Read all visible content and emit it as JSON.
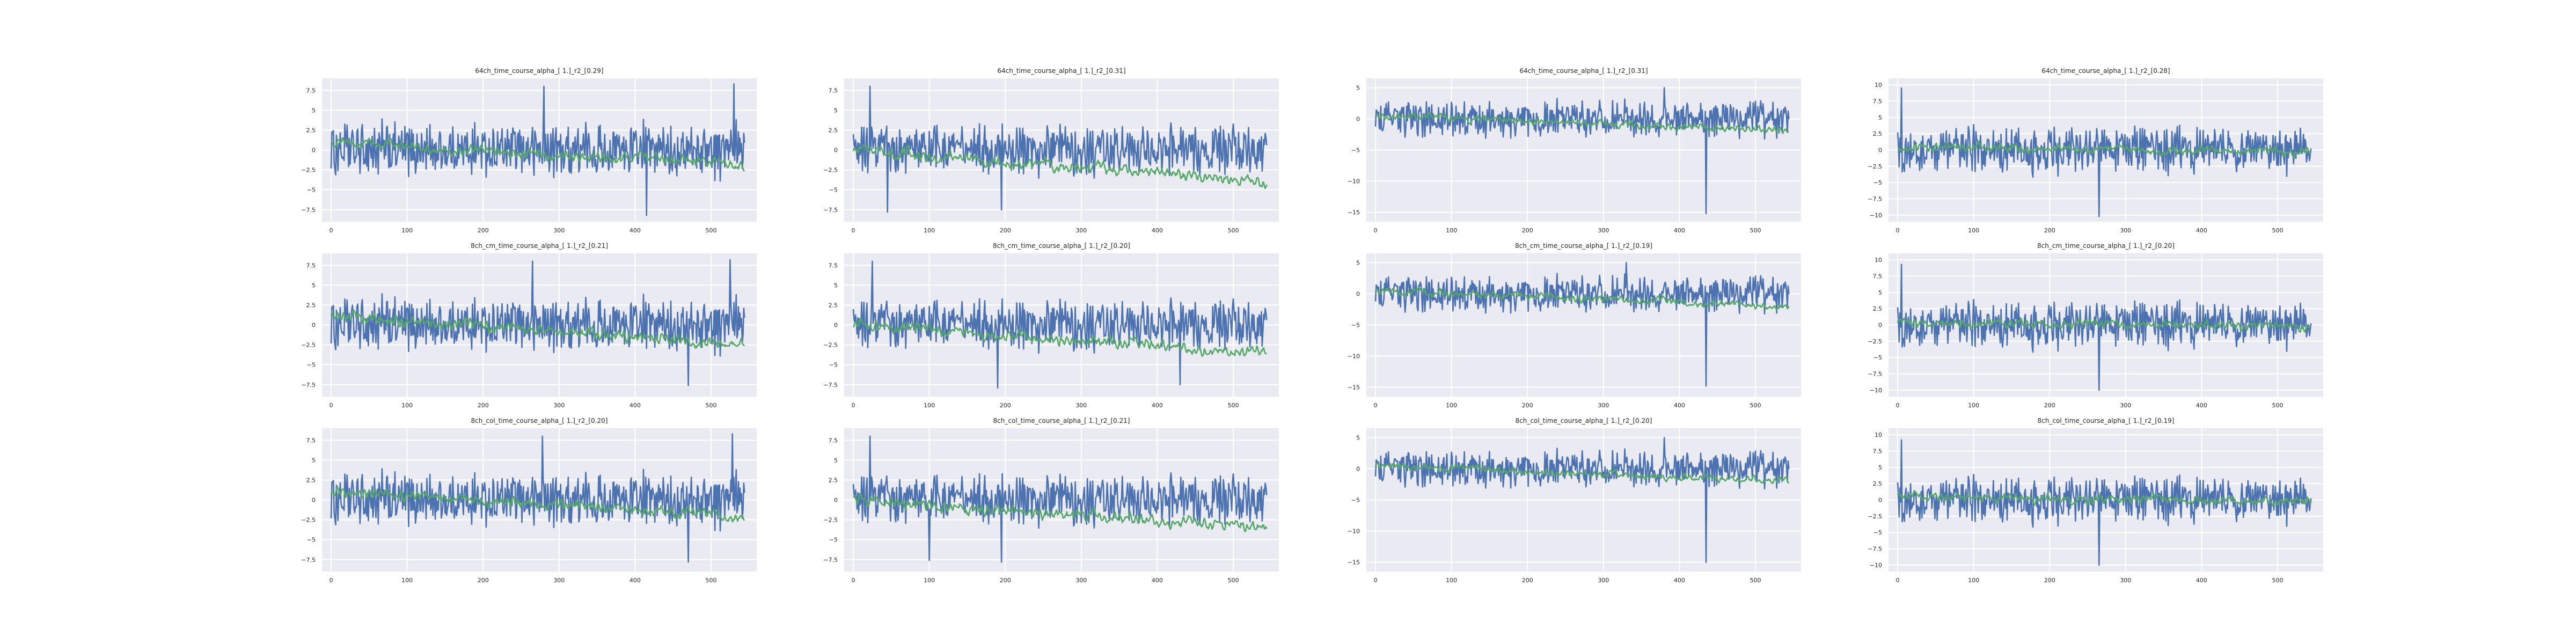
{
  "chart_data": [
    {
      "type": "line",
      "title": "64ch_time_course_alpha_[ 1.]_r2_[0.29]",
      "xlim": [
        -12,
        560
      ],
      "ylim": [
        -9.0,
        9.0
      ],
      "xticks": [
        0,
        100,
        200,
        300,
        400,
        500
      ],
      "yticks": [
        -7.5,
        -5.0,
        -2.5,
        0.0,
        2.5,
        5.0,
        7.5
      ],
      "n_points": 545,
      "grid": true,
      "series": [
        {
          "color": "#4c72b0",
          "mean": 0.0,
          "amplitude": 3.2,
          "events": [
            {
              "x": 280,
              "value": 8.0
            },
            {
              "x": 415,
              "value": -8.2
            },
            {
              "x": 530,
              "value": 8.3
            }
          ]
        },
        {
          "color": "#55a868",
          "start": 1.0,
          "end": -2.0,
          "amplitude": 0.7
        }
      ]
    },
    {
      "type": "line",
      "title": "64ch_time_course_alpha_[ 1.]_r2_[0.31]",
      "xlim": [
        -12,
        560
      ],
      "ylim": [
        -9.0,
        9.0
      ],
      "xticks": [
        0,
        100,
        200,
        300,
        400,
        500
      ],
      "yticks": [
        -7.5,
        -5.0,
        -2.5,
        0.0,
        2.5,
        5.0,
        7.5
      ],
      "n_points": 545,
      "grid": true,
      "series": [
        {
          "color": "#4c72b0",
          "mean": 0.0,
          "amplitude": 3.0,
          "events": [
            {
              "x": 22,
              "value": 8.0
            },
            {
              "x": 45,
              "value": -7.8
            },
            {
              "x": 195,
              "value": -7.5
            }
          ]
        },
        {
          "color": "#55a868",
          "start": 0.0,
          "end": -4.0,
          "amplitude": 0.8
        }
      ]
    },
    {
      "type": "line",
      "title": "64ch_time_course_alpha_[ 1.]_r2_[0.31]",
      "xlim": [
        -12,
        560
      ],
      "ylim": [
        -16.5,
        6.5
      ],
      "xticks": [
        0,
        100,
        200,
        300,
        400,
        500
      ],
      "yticks": [
        -15,
        -10,
        -5,
        0,
        5
      ],
      "n_points": 545,
      "grid": true,
      "series": [
        {
          "color": "#4c72b0",
          "mean": 0.0,
          "amplitude": 2.6,
          "events": [
            {
              "x": 435,
              "value": -15.2
            },
            {
              "x": 380,
              "value": 5.0
            }
          ]
        },
        {
          "color": "#55a868",
          "start": 0.5,
          "end": -2.0,
          "amplitude": 0.6
        }
      ]
    },
    {
      "type": "line",
      "title": "64ch_time_course_alpha_[ 1.]_r2_[0.28]",
      "xlim": [
        -12,
        560
      ],
      "ylim": [
        -11.0,
        11.0
      ],
      "xticks": [
        0,
        100,
        200,
        300,
        400,
        500
      ],
      "yticks": [
        -10.0,
        -7.5,
        -5.0,
        -2.5,
        0.0,
        2.5,
        5.0,
        7.5,
        10.0
      ],
      "n_points": 545,
      "grid": true,
      "series": [
        {
          "color": "#4c72b0",
          "mean": 0.0,
          "amplitude": 3.4,
          "events": [
            {
              "x": 5,
              "value": 9.5
            },
            {
              "x": 265,
              "value": -10.2
            }
          ]
        },
        {
          "color": "#55a868",
          "start": 0.5,
          "end": -0.3,
          "amplitude": 0.7
        }
      ]
    },
    {
      "type": "line",
      "title": "8ch_cm_time_course_alpha_[ 1.]_r2_[0.21]",
      "xlim": [
        -12,
        560
      ],
      "ylim": [
        -9.0,
        9.0
      ],
      "xticks": [
        0,
        100,
        200,
        300,
        400,
        500
      ],
      "yticks": [
        -7.5,
        -5.0,
        -2.5,
        0.0,
        2.5,
        5.0,
        7.5
      ],
      "n_points": 545,
      "grid": true,
      "series": [
        {
          "color": "#4c72b0",
          "mean": 0.0,
          "amplitude": 3.2,
          "events": [
            {
              "x": 265,
              "value": 8.0
            },
            {
              "x": 470,
              "value": -7.6
            },
            {
              "x": 525,
              "value": 8.2
            }
          ]
        },
        {
          "color": "#55a868",
          "start": 1.0,
          "end": -2.5,
          "amplitude": 0.8
        }
      ]
    },
    {
      "type": "line",
      "title": "8ch_cm_time_course_alpha_[ 1.]_r2_[0.20]",
      "xlim": [
        -12,
        560
      ],
      "ylim": [
        -9.0,
        9.0
      ],
      "xticks": [
        0,
        100,
        200,
        300,
        400,
        500
      ],
      "yticks": [
        -7.5,
        -5.0,
        -2.5,
        0.0,
        2.5,
        5.0,
        7.5
      ],
      "n_points": 545,
      "grid": true,
      "series": [
        {
          "color": "#4c72b0",
          "mean": 0.0,
          "amplitude": 3.0,
          "events": [
            {
              "x": 25,
              "value": 8.0
            },
            {
              "x": 190,
              "value": -7.9
            },
            {
              "x": 430,
              "value": -7.5
            }
          ]
        },
        {
          "color": "#55a868",
          "start": 0.0,
          "end": -3.5,
          "amplitude": 0.8
        }
      ]
    },
    {
      "type": "line",
      "title": "8ch_cm_time_course_alpha_[ 1.]_r2_[0.19]",
      "xlim": [
        -12,
        560
      ],
      "ylim": [
        -16.5,
        6.5
      ],
      "xticks": [
        0,
        100,
        200,
        300,
        400,
        500
      ],
      "yticks": [
        -15,
        -10,
        -5,
        0,
        5
      ],
      "n_points": 545,
      "grid": true,
      "series": [
        {
          "color": "#4c72b0",
          "mean": 0.0,
          "amplitude": 2.6,
          "events": [
            {
              "x": 435,
              "value": -14.8
            },
            {
              "x": 330,
              "value": 5.0
            }
          ]
        },
        {
          "color": "#55a868",
          "start": 0.5,
          "end": -2.0,
          "amplitude": 0.6
        }
      ]
    },
    {
      "type": "line",
      "title": "8ch_cm_time_course_alpha_[ 1.]_r2_[0.20]",
      "xlim": [
        -12,
        560
      ],
      "ylim": [
        -11.0,
        11.0
      ],
      "xticks": [
        0,
        100,
        200,
        300,
        400,
        500
      ],
      "yticks": [
        -10.0,
        -7.5,
        -5.0,
        -2.5,
        0.0,
        2.5,
        5.0,
        7.5,
        10.0
      ],
      "n_points": 545,
      "grid": true,
      "series": [
        {
          "color": "#4c72b0",
          "mean": 0.0,
          "amplitude": 3.4,
          "events": [
            {
              "x": 5,
              "value": 9.3
            },
            {
              "x": 265,
              "value": -10.0
            }
          ]
        },
        {
          "color": "#55a868",
          "start": 0.5,
          "end": -0.3,
          "amplitude": 0.7
        }
      ]
    },
    {
      "type": "line",
      "title": "8ch_col_time_course_alpha_[ 1.]_r2_[0.20]",
      "xlim": [
        -12,
        560
      ],
      "ylim": [
        -9.0,
        9.0
      ],
      "xticks": [
        0,
        100,
        200,
        300,
        400,
        500
      ],
      "yticks": [
        -7.5,
        -5.0,
        -2.5,
        0.0,
        2.5,
        5.0,
        7.5
      ],
      "n_points": 545,
      "grid": true,
      "series": [
        {
          "color": "#4c72b0",
          "mean": 0.0,
          "amplitude": 3.2,
          "events": [
            {
              "x": 278,
              "value": 8.0
            },
            {
              "x": 470,
              "value": -7.8
            },
            {
              "x": 528,
              "value": 8.3
            }
          ]
        },
        {
          "color": "#55a868",
          "start": 1.0,
          "end": -2.0,
          "amplitude": 0.7
        }
      ]
    },
    {
      "type": "line",
      "title": "8ch_col_time_course_alpha_[ 1.]_r2_[0.21]",
      "xlim": [
        -12,
        560
      ],
      "ylim": [
        -9.0,
        9.0
      ],
      "xticks": [
        0,
        100,
        200,
        300,
        400,
        500
      ],
      "yticks": [
        -7.5,
        -5.0,
        -2.5,
        0.0,
        2.5,
        5.0,
        7.5
      ],
      "n_points": 545,
      "grid": true,
      "series": [
        {
          "color": "#4c72b0",
          "mean": 0.0,
          "amplitude": 3.0,
          "events": [
            {
              "x": 22,
              "value": 8.0
            },
            {
              "x": 100,
              "value": -7.6
            },
            {
              "x": 195,
              "value": -7.8
            }
          ]
        },
        {
          "color": "#55a868",
          "start": 0.0,
          "end": -3.5,
          "amplitude": 0.8
        }
      ]
    },
    {
      "type": "line",
      "title": "8ch_col_time_course_alpha_[ 1.]_r2_[0.20]",
      "xlim": [
        -12,
        560
      ],
      "ylim": [
        -16.5,
        6.5
      ],
      "xticks": [
        0,
        100,
        200,
        300,
        400,
        500
      ],
      "yticks": [
        -15,
        -10,
        -5,
        0,
        5
      ],
      "n_points": 545,
      "grid": true,
      "series": [
        {
          "color": "#4c72b0",
          "mean": 0.0,
          "amplitude": 2.6,
          "events": [
            {
              "x": 435,
              "value": -15.0
            },
            {
              "x": 380,
              "value": 5.0
            }
          ]
        },
        {
          "color": "#55a868",
          "start": 0.5,
          "end": -2.0,
          "amplitude": 0.6
        }
      ]
    },
    {
      "type": "line",
      "title": "8ch_col_time_course_alpha_[ 1.]_r2_[0.19]",
      "xlim": [
        -12,
        560
      ],
      "ylim": [
        -11.0,
        11.0
      ],
      "xticks": [
        0,
        100,
        200,
        300,
        400,
        500
      ],
      "yticks": [
        -10.0,
        -7.5,
        -5.0,
        -2.5,
        0.0,
        2.5,
        5.0,
        7.5,
        10.0
      ],
      "n_points": 545,
      "grid": true,
      "series": [
        {
          "color": "#4c72b0",
          "mean": 0.0,
          "amplitude": 3.4,
          "events": [
            {
              "x": 5,
              "value": 9.2
            },
            {
              "x": 265,
              "value": -10.0
            }
          ]
        },
        {
          "color": "#55a868",
          "start": 0.5,
          "end": -0.3,
          "amplitude": 0.7
        }
      ]
    }
  ]
}
